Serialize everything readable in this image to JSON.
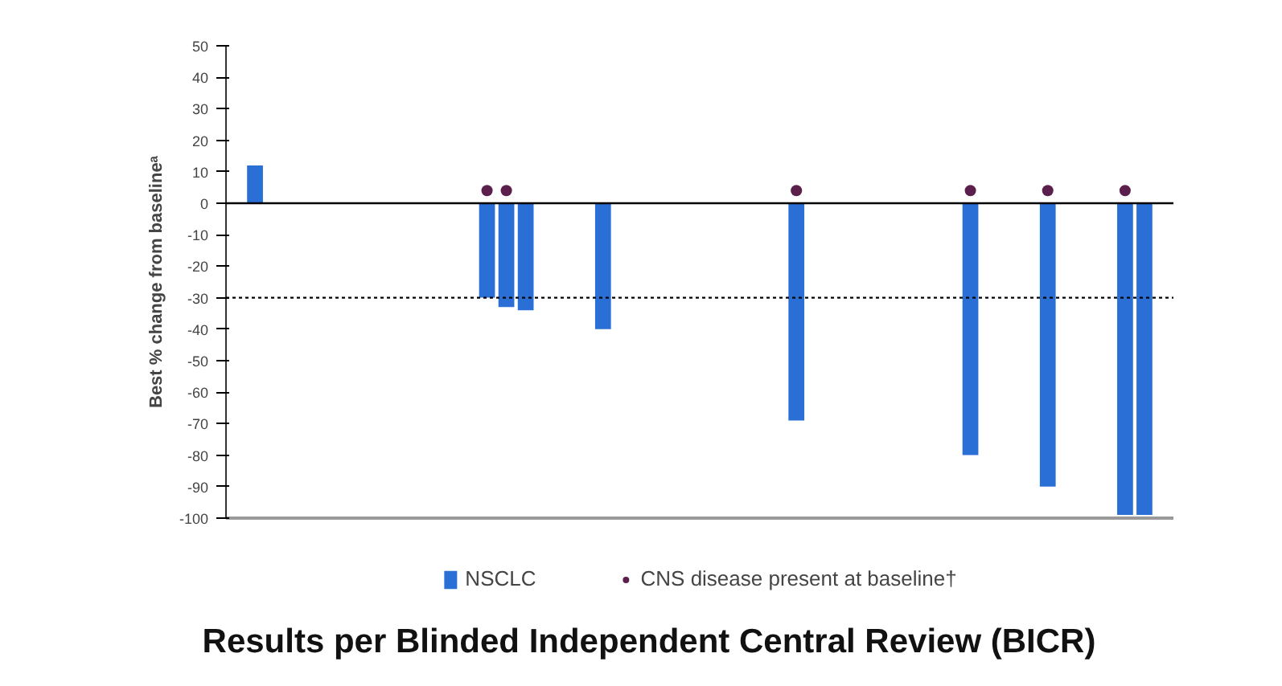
{
  "chart_data": {
    "type": "bar",
    "title": "Results per Blinded Independent Central Review (BICR)",
    "ylabel": "Best % change from baselineᵃ",
    "categories": [
      null,
      null,
      null,
      null,
      null,
      null,
      null,
      null,
      null,
      null,
      null,
      null,
      null,
      null,
      null,
      null,
      null,
      null,
      null,
      null,
      null,
      null,
      null,
      null,
      null,
      null,
      null,
      null,
      null,
      null,
      null,
      null,
      null,
      null,
      null,
      null,
      null,
      null,
      null,
      null,
      null,
      null,
      null,
      null,
      null,
      null,
      null,
      null,
      null
    ],
    "series": [
      {
        "name": "NSCLC",
        "color": "#2a6fd6",
        "values": [
          null,
          12,
          null,
          null,
          null,
          null,
          null,
          null,
          null,
          null,
          null,
          null,
          null,
          -30,
          -33,
          -34,
          null,
          null,
          null,
          -40,
          null,
          null,
          null,
          null,
          null,
          null,
          null,
          null,
          null,
          -69,
          null,
          null,
          null,
          null,
          null,
          null,
          null,
          null,
          -80,
          null,
          null,
          null,
          -90,
          null,
          null,
          null,
          -99,
          -99,
          null
        ]
      },
      {
        "name": "CNS disease present at baseline†",
        "type": "scatter",
        "marker": "circle",
        "color": "#5a1f4a",
        "values": [
          null,
          null,
          null,
          null,
          null,
          null,
          null,
          null,
          null,
          null,
          null,
          null,
          null,
          4,
          4,
          null,
          null,
          null,
          null,
          null,
          null,
          null,
          null,
          null,
          null,
          null,
          null,
          null,
          null,
          4,
          null,
          null,
          null,
          null,
          null,
          null,
          null,
          null,
          4,
          null,
          null,
          null,
          4,
          null,
          null,
          null,
          4,
          null,
          null
        ]
      }
    ],
    "ylim": [
      -100,
      50
    ],
    "yticks": [
      -100,
      -90,
      -80,
      -70,
      -60,
      -50,
      -40,
      -30,
      -20,
      -10,
      0,
      10,
      20,
      30,
      40,
      50
    ],
    "ref_lines": [
      {
        "axis": "y",
        "value": 0,
        "color": "#000000",
        "line_style": "solid"
      },
      {
        "axis": "y",
        "value": -30,
        "color": "#000000",
        "line_style": "dotted"
      }
    ],
    "tick_labels": "y",
    "grid": false,
    "legend": "bottom"
  }
}
